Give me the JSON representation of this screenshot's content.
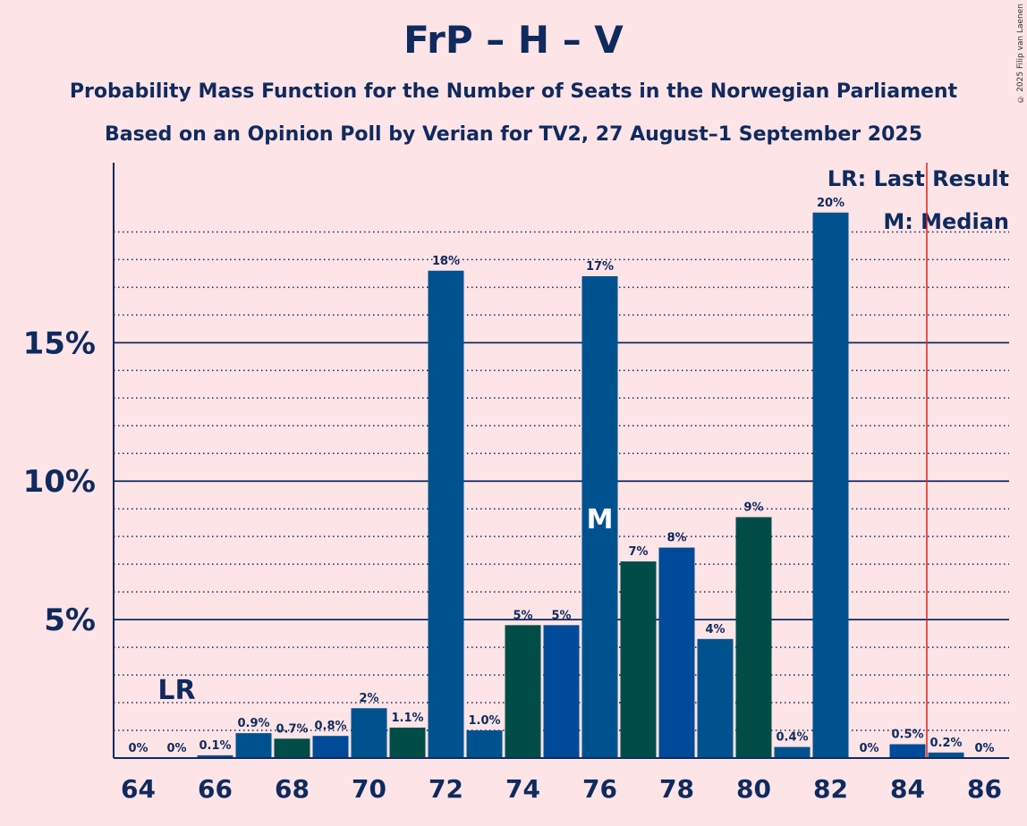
{
  "title": "FrP – H – V",
  "subtitle1": "Probability Mass Function for the Number of Seats in the Norwegian Parliament",
  "subtitle2": "Based on an Opinion Poll by Verian for TV2, 27 August–1 September 2025",
  "copyright": "© 2025 Filip van Laenen",
  "legend": {
    "lr": "LR: Last Result",
    "m": "M: Median"
  },
  "colors": {
    "background": "#FDE4E6",
    "text": "#0F2A5E",
    "series": [
      "#00528F",
      "#004D47",
      "#004A9A"
    ],
    "last_result_line": "#E2231A"
  },
  "chart_data": {
    "type": "bar",
    "x": [
      64,
      65,
      66,
      67,
      68,
      69,
      70,
      71,
      72,
      73,
      74,
      75,
      76,
      77,
      78,
      79,
      80,
      81,
      82,
      83,
      84,
      85,
      86
    ],
    "values": [
      0,
      0,
      0.1,
      0.9,
      0.7,
      0.8,
      1.8,
      1.1,
      17.6,
      1.0,
      4.8,
      4.8,
      17.4,
      7.1,
      7.6,
      4.3,
      8.7,
      0.4,
      19.7,
      0,
      0.5,
      0.2,
      0
    ],
    "labels": [
      "0%",
      "0%",
      "0.1%",
      "0.9%",
      "0.7%",
      "0.8%",
      "2%",
      "1.1%",
      "18%",
      "1.0%",
      "5%",
      "5%",
      "17%",
      "7%",
      "8%",
      "4%",
      "9%",
      "0.4%",
      "20%",
      "0%",
      "0.5%",
      "0.2%",
      "0%"
    ],
    "color_index": [
      0,
      1,
      0,
      0,
      1,
      2,
      0,
      1,
      0,
      0,
      1,
      2,
      0,
      1,
      2,
      0,
      1,
      0,
      0,
      1,
      2,
      0,
      1
    ],
    "x_ticks": [
      "64",
      "66",
      "68",
      "70",
      "72",
      "74",
      "76",
      "78",
      "80",
      "82",
      "84",
      "86"
    ],
    "y_ticks": [
      {
        "value": 5,
        "label": "5%"
      },
      {
        "value": 10,
        "label": "10%"
      },
      {
        "value": 15,
        "label": "15%"
      }
    ],
    "ylim": [
      0,
      21.5
    ],
    "last_result": {
      "seat": 65,
      "label": "LR"
    },
    "majority_line": 84.5,
    "median": {
      "seat": 76,
      "label": "M"
    }
  }
}
